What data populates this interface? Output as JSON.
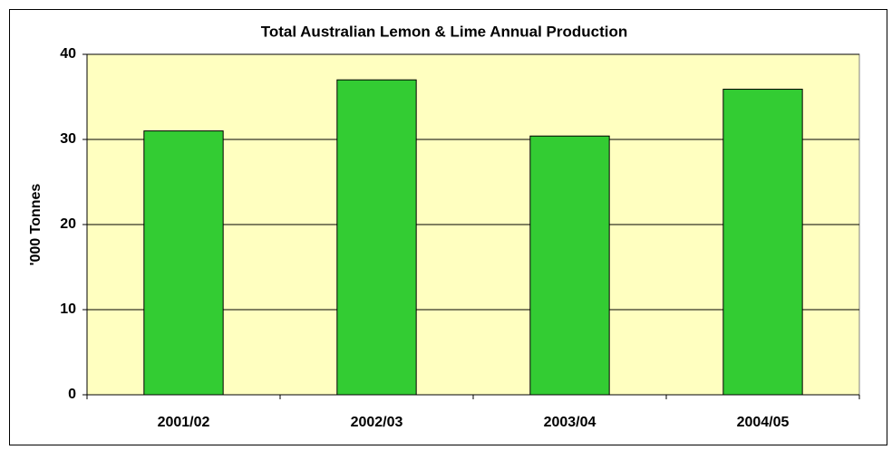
{
  "chart_data": {
    "type": "bar",
    "title": "Total Australian Lemon & Lime Annual Production",
    "y_label": "'000 Tonnes",
    "categories": [
      "2001/02",
      "2002/03",
      "2003/04",
      "2004/05"
    ],
    "values": [
      31,
      37,
      30.4,
      35.9
    ],
    "color": "#33cc33",
    "plot_background": "#ffffc0",
    "ylim": [
      0,
      40
    ],
    "yticks": [
      0,
      10,
      20,
      30,
      40
    ],
    "grid": true
  }
}
